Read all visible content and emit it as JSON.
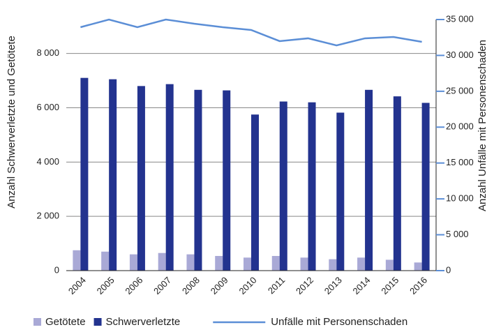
{
  "chart_data": {
    "type": "bar-line",
    "ylabel": "Anzahl Schwerverletzte und Getötete",
    "y2label": "Anzahl Unfälle mit Personenschaden",
    "categories": [
      "2004",
      "2005",
      "2006",
      "2007",
      "2008",
      "2009",
      "2010",
      "2011",
      "2012",
      "2013",
      "2014",
      "2015",
      "2016"
    ],
    "series": [
      {
        "name": "Getötete",
        "color": "#a9a9d6",
        "type": "bar",
        "values": [
          750,
          700,
          600,
          650,
          600,
          540,
          480,
          540,
          480,
          420,
          480,
          400,
          300
        ]
      },
      {
        "name": "Schwerverletzte",
        "color": "#23338f",
        "type": "bar",
        "values": [
          7100,
          7050,
          6800,
          6870,
          6660,
          6640,
          5750,
          6230,
          6200,
          5820,
          6660,
          6420,
          6180
        ]
      },
      {
        "name": "Unfälle mit Personenschaden",
        "color": "#5b8ed6",
        "type": "line",
        "axis": "y2",
        "values": [
          33930,
          35000,
          33930,
          35000,
          34420,
          33930,
          33540,
          31990,
          32380,
          31400,
          32380,
          32570,
          31890
        ]
      }
    ],
    "ylim": [
      0,
      9250
    ],
    "yticks": [
      0,
      {
        "value": 2000,
        "label": "2 000"
      },
      {
        "value": 4000,
        "label": "4 000"
      },
      {
        "value": 6000,
        "label": "6 000"
      },
      {
        "value": 8000,
        "label": "8 000"
      }
    ],
    "y2lim": [
      0,
      35000
    ],
    "y2ticks": [
      0,
      {
        "value": 5000,
        "label": "5 000"
      },
      {
        "value": 10000,
        "label": "10 000"
      },
      {
        "value": 15000,
        "label": "15 000"
      },
      {
        "value": 20000,
        "label": "20 000"
      },
      {
        "value": 25000,
        "label": "25 000"
      },
      {
        "value": 30000,
        "label": "30 000"
      },
      {
        "value": 35000,
        "label": "35 000"
      }
    ],
    "grid": true,
    "legend": "bottom"
  }
}
